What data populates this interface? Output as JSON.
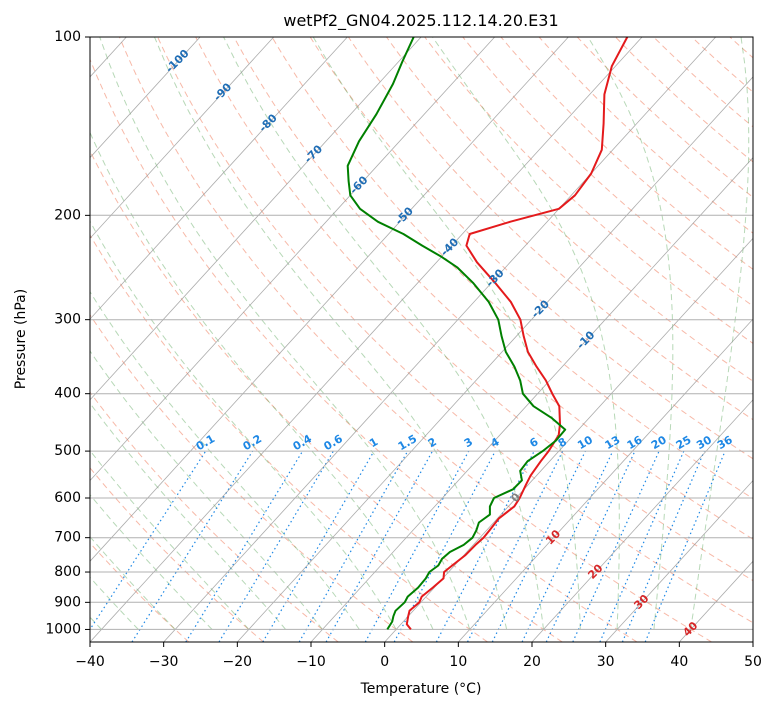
{
  "chart_data": {
    "type": "skew-t log-p",
    "title": "wetPf2_GN04.2025.112.14.20.E31",
    "xlabel": "Temperature (°C)",
    "ylabel": "Pressure (hPa)",
    "xlim": [
      -40,
      50
    ],
    "ylim": [
      1050,
      100
    ],
    "x_ticks": [
      -40,
      -30,
      -20,
      -10,
      0,
      10,
      20,
      30,
      40,
      50
    ],
    "y_ticks": [
      1000,
      900,
      800,
      700,
      600,
      500,
      400,
      300,
      200,
      100
    ],
    "grid": true,
    "skew_isotherm_labels": [
      "-100",
      "-90",
      "-80",
      "-70",
      "-60",
      "-50",
      "-40",
      "-30",
      "-20",
      "-10",
      "0",
      "10",
      "20",
      "30",
      "40"
    ],
    "mixing_ratio_labels": [
      "0.1",
      "0.2",
      "0.4",
      "0.6",
      "1",
      "1.5",
      "2",
      "3",
      "4",
      "6",
      "8",
      "10",
      "13",
      "16",
      "20",
      "25",
      "30",
      "36"
    ],
    "theta_labels": [
      "10",
      "20",
      "30",
      "40"
    ],
    "series": [
      {
        "color": "#e41a1c",
        "points": [
          [
            1000,
            2.0
          ],
          [
            980,
            0.8
          ],
          [
            950,
            0.0
          ],
          [
            930,
            -0.5
          ],
          [
            900,
            -0.2
          ],
          [
            880,
            -0.6
          ],
          [
            850,
            -0.2
          ],
          [
            820,
            0.1
          ],
          [
            800,
            -0.6
          ],
          [
            780,
            -0.3
          ],
          [
            750,
            0.2
          ],
          [
            720,
            0.3
          ],
          [
            700,
            0.5
          ],
          [
            680,
            0.4
          ],
          [
            650,
            0.2
          ],
          [
            620,
            0.8
          ],
          [
            600,
            0.5
          ],
          [
            570,
            -0.3
          ],
          [
            550,
            -0.8
          ],
          [
            520,
            -1.2
          ],
          [
            500,
            -1.4
          ],
          [
            470,
            -2.0
          ],
          [
            450,
            -3.2
          ],
          [
            420,
            -5.5
          ],
          [
            400,
            -8.0
          ],
          [
            380,
            -10.5
          ],
          [
            360,
            -13.5
          ],
          [
            340,
            -16.5
          ],
          [
            320,
            -19.0
          ],
          [
            300,
            -21.5
          ],
          [
            280,
            -25.0
          ],
          [
            260,
            -29.5
          ],
          [
            240,
            -34.5
          ],
          [
            225,
            -38.0
          ],
          [
            215,
            -39.0
          ],
          [
            205,
            -35.0
          ],
          [
            195,
            -30.0
          ],
          [
            185,
            -29.5
          ],
          [
            170,
            -30.0
          ],
          [
            155,
            -31.5
          ],
          [
            140,
            -34.5
          ],
          [
            125,
            -38.0
          ],
          [
            112,
            -40.5
          ],
          [
            100,
            -42.0
          ]
        ]
      },
      {
        "color": "#008000",
        "points": [
          [
            1000,
            -1.2
          ],
          [
            970,
            -1.5
          ],
          [
            950,
            -2.0
          ],
          [
            930,
            -2.4
          ],
          [
            900,
            -2.2
          ],
          [
            880,
            -2.5
          ],
          [
            850,
            -2.2
          ],
          [
            820,
            -2.3
          ],
          [
            800,
            -2.6
          ],
          [
            780,
            -2.2
          ],
          [
            760,
            -2.5
          ],
          [
            740,
            -2.3
          ],
          [
            720,
            -1.3
          ],
          [
            700,
            -1.0
          ],
          [
            680,
            -1.4
          ],
          [
            660,
            -2.0
          ],
          [
            640,
            -1.5
          ],
          [
            620,
            -2.5
          ],
          [
            600,
            -3.0
          ],
          [
            580,
            -1.5
          ],
          [
            560,
            -1.4
          ],
          [
            540,
            -2.8
          ],
          [
            520,
            -3.0
          ],
          [
            500,
            -2.2
          ],
          [
            480,
            -1.7
          ],
          [
            460,
            -1.8
          ],
          [
            440,
            -5.0
          ],
          [
            420,
            -9.0
          ],
          [
            400,
            -12.0
          ],
          [
            380,
            -14.0
          ],
          [
            360,
            -16.5
          ],
          [
            340,
            -19.5
          ],
          [
            320,
            -22.0
          ],
          [
            300,
            -24.5
          ],
          [
            280,
            -28.0
          ],
          [
            260,
            -32.5
          ],
          [
            245,
            -36.5
          ],
          [
            235,
            -40.0
          ],
          [
            225,
            -44.0
          ],
          [
            215,
            -48.0
          ],
          [
            205,
            -53.0
          ],
          [
            195,
            -57.0
          ],
          [
            185,
            -60.0
          ],
          [
            175,
            -62.0
          ],
          [
            165,
            -64.0
          ],
          [
            150,
            -65.5
          ],
          [
            135,
            -66.5
          ],
          [
            120,
            -68.0
          ],
          [
            110,
            -69.5
          ],
          [
            100,
            -71.0
          ]
        ]
      }
    ]
  }
}
